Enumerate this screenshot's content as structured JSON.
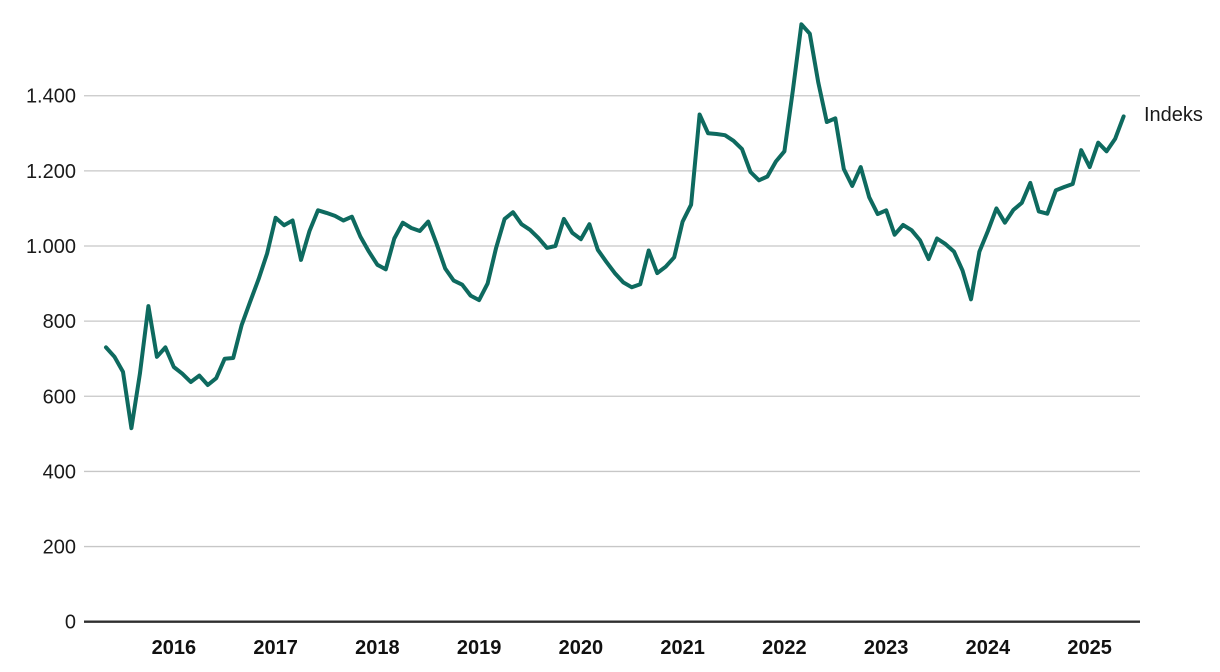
{
  "colors": {
    "line": "#0e6a5f",
    "grid": "#c7c7c7",
    "axis": "#2f2f2f",
    "text": "#1a1a1a",
    "background": "#ffffff"
  },
  "chart_data": {
    "type": "line",
    "title": "",
    "xlabel": "",
    "ylabel": "",
    "grid": "horizontal",
    "legend_position": "right-of-line-end",
    "ylim": [
      0,
      1650
    ],
    "y_tick_values": [
      0,
      200,
      400,
      600,
      800,
      1000,
      1200,
      1400
    ],
    "y_tick_labels": [
      "0",
      "200",
      "400",
      "600",
      "800",
      "1.000",
      "1.200",
      "1.400"
    ],
    "x_tick_years": [
      2016,
      2017,
      2018,
      2019,
      2020,
      2021,
      2022,
      2023,
      2024,
      2025
    ],
    "x_tick_labels": [
      "2016",
      "2017",
      "2018",
      "2019",
      "2020",
      "2021",
      "2022",
      "2023",
      "2024",
      "2025"
    ],
    "series": [
      {
        "name": "Indeks",
        "frequency": "monthly",
        "start": "2015-05",
        "end": "2025-05",
        "values": [
          730,
          705,
          665,
          515,
          660,
          840,
          705,
          730,
          678,
          660,
          638,
          655,
          630,
          648,
          700,
          702,
          790,
          852,
          912,
          980,
          1075,
          1055,
          1068,
          963,
          1040,
          1095,
          1088,
          1080,
          1068,
          1078,
          1025,
          985,
          950,
          938,
          1020,
          1062,
          1048,
          1040,
          1065,
          1005,
          940,
          908,
          897,
          868,
          856,
          900,
          995,
          1072,
          1090,
          1058,
          1043,
          1021,
          995,
          1000,
          1072,
          1035,
          1018,
          1058,
          990,
          958,
          928,
          903,
          890,
          898,
          988,
          928,
          945,
          970,
          1065,
          1110,
          1350,
          1300,
          1298,
          1295,
          1280,
          1258,
          1197,
          1175,
          1185,
          1225,
          1252,
          1415,
          1590,
          1565,
          1435,
          1330,
          1340,
          1205,
          1160,
          1210,
          1130,
          1085,
          1095,
          1030,
          1056,
          1042,
          1015,
          965,
          1020,
          1005,
          985,
          935,
          858,
          985,
          1040,
          1100,
          1062,
          1096,
          1115,
          1168,
          1092,
          1086,
          1148,
          1157,
          1165,
          1255,
          1210,
          1275,
          1252,
          1285,
          1345
        ]
      }
    ]
  }
}
